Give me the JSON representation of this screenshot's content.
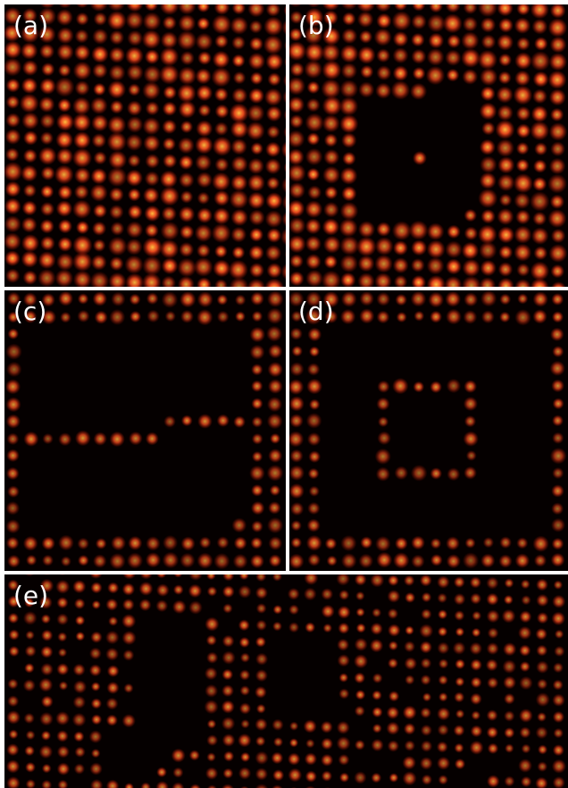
{
  "figure": {
    "background_color": "#ffffff",
    "panel_background": "#050000",
    "atom_color_core": "#ffc040",
    "atom_color_mid": "#ff5020",
    "atom_color_edge": "#c01000",
    "panels": [
      {
        "id": "a",
        "label": "(a)",
        "pattern": "full lattice"
      },
      {
        "id": "b",
        "label": "(b)",
        "pattern": "lattice with rectangular vacancy hole, one atom inside"
      },
      {
        "id": "c",
        "label": "(c)",
        "pattern": "frame with horizontal bar"
      },
      {
        "id": "d",
        "label": "(d)",
        "pattern": "square within square"
      },
      {
        "id": "e",
        "label": "(e)",
        "pattern": "wide lattice with several vacancy regions"
      }
    ]
  }
}
